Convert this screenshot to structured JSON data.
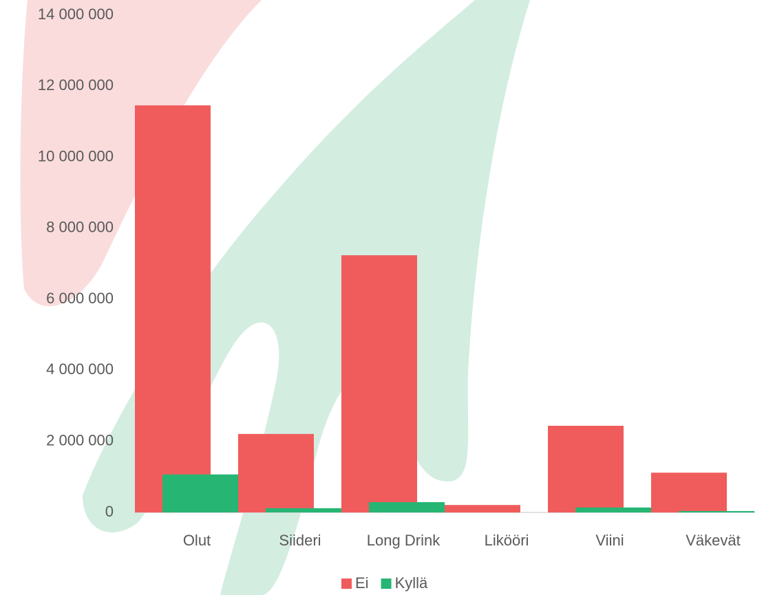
{
  "chart_data": {
    "type": "bar",
    "categories": [
      "Olut",
      "Siideri",
      "Long Drink",
      "Likööri",
      "Viini",
      "Väkevät"
    ],
    "series": [
      {
        "name": "Ei",
        "color": "#f05c5c",
        "values": [
          11460000,
          2210000,
          7240000,
          210000,
          2440000,
          1120000
        ]
      },
      {
        "name": "Kyllä",
        "color": "#26b573",
        "values": [
          1070000,
          120000,
          290000,
          0,
          140000,
          40000
        ]
      }
    ],
    "ylim": [
      0,
      14000000
    ],
    "yticks": [
      0,
      {
        "value": 2000000,
        "label": "2 000 000"
      },
      {
        "value": 4000000,
        "label": "4 000 000"
      },
      {
        "value": 6000000,
        "label": "6 000 000"
      },
      {
        "value": 8000000,
        "label": "8 000 000"
      },
      {
        "value": 10000000,
        "label": "10 000 000"
      },
      {
        "value": 12000000,
        "label": "12 000 000"
      },
      {
        "value": 14000000,
        "label": "14 000 000"
      }
    ],
    "legend": "bottom"
  }
}
